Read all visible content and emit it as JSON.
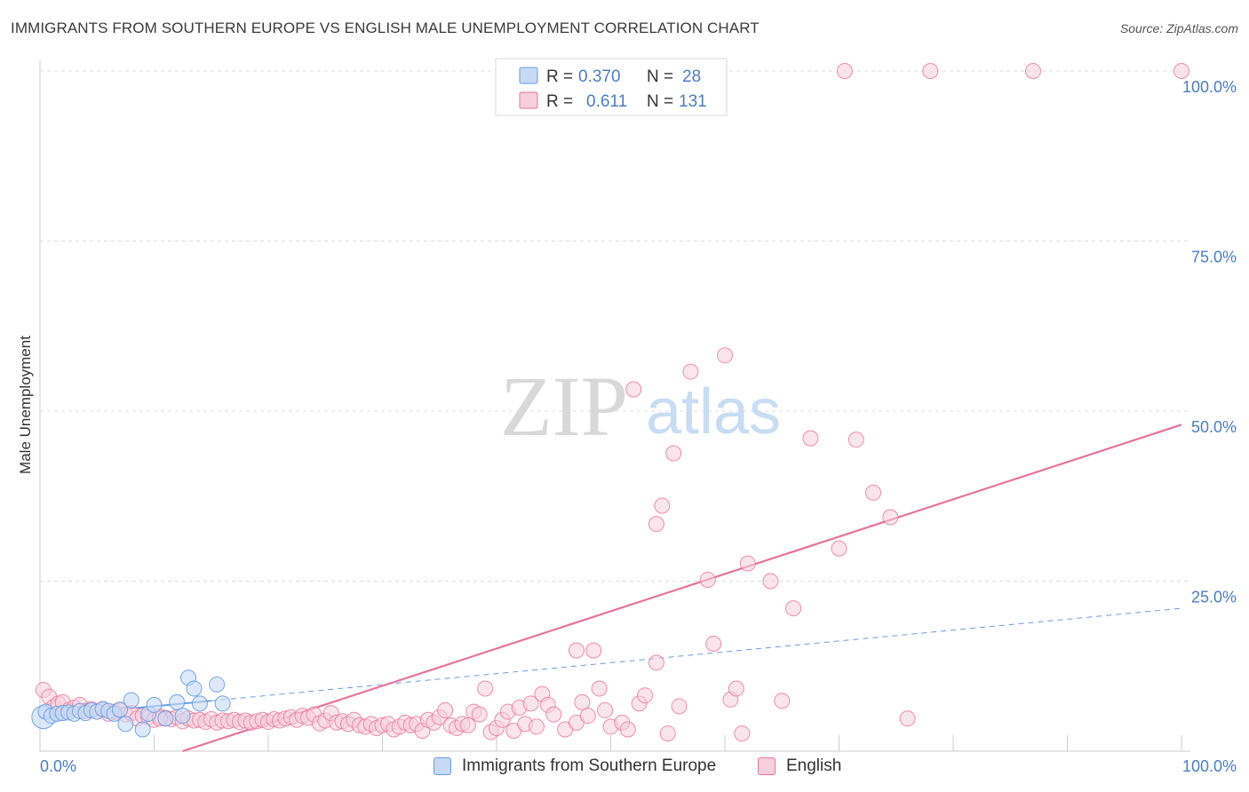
{
  "title": "IMMIGRANTS FROM SOUTHERN EUROPE VS ENGLISH MALE UNEMPLOYMENT CORRELATION CHART",
  "source": "Source: ZipAtlas.com",
  "watermark": {
    "zip": "ZIP",
    "atlas": "atlas"
  },
  "colors": {
    "blue": "#6b9be0",
    "blue_fill": "#c6daf6",
    "pink": "#e8739a",
    "pink_fill": "#f8cfdc",
    "tick_text": "#4a7cc9"
  },
  "legend_top": {
    "rows": [
      {
        "r_label": "R =",
        "r_value": "0.370",
        "n_label": "N =",
        "n_value": "28"
      },
      {
        "r_label": "R =",
        "r_value": "0.611",
        "n_label": "N =",
        "n_value": "131"
      }
    ]
  },
  "legend_bottom": {
    "blue_label": "Immigrants from Southern Europe",
    "pink_label": "English"
  },
  "chart_data": {
    "type": "scatter",
    "title": "IMMIGRANTS FROM SOUTHERN EUROPE VS ENGLISH MALE UNEMPLOYMENT CORRELATION CHART",
    "xlabel": "",
    "ylabel": "Male Unemployment",
    "xlim": [
      0,
      100
    ],
    "ylim": [
      0,
      100
    ],
    "x_tick_labels": [
      "0.0%",
      "100.0%"
    ],
    "y_tick_labels": [
      "100.0%",
      "75.0%",
      "50.0%",
      "25.0%"
    ],
    "y_ticks": [
      100,
      75,
      50,
      25
    ],
    "grid": true,
    "legend_position": "top-center",
    "series": [
      {
        "name": "Immigrants from Southern Europe",
        "color": "#6b9be0",
        "trend": {
          "x": [
            0,
            100
          ],
          "y": [
            5.0,
            21.0
          ],
          "solid_until_x": 15
        },
        "points": [
          [
            0.3,
            5.0
          ],
          [
            0.5,
            5.8
          ],
          [
            1.0,
            5.2
          ],
          [
            1.5,
            5.5
          ],
          [
            2.0,
            5.6
          ],
          [
            2.5,
            5.7
          ],
          [
            3.0,
            5.5
          ],
          [
            3.5,
            5.9
          ],
          [
            4.0,
            5.6
          ],
          [
            4.5,
            6.0
          ],
          [
            5.0,
            5.8
          ],
          [
            5.5,
            6.2
          ],
          [
            6.0,
            5.9
          ],
          [
            6.5,
            5.5
          ],
          [
            7.0,
            6.1
          ],
          [
            7.5,
            4.0
          ],
          [
            8.0,
            7.5
          ],
          [
            9.0,
            3.2
          ],
          [
            9.5,
            5.5
          ],
          [
            10.0,
            6.8
          ],
          [
            11.0,
            4.8
          ],
          [
            12.0,
            7.2
          ],
          [
            12.5,
            5.2
          ],
          [
            13.0,
            10.8
          ],
          [
            13.5,
            9.2
          ],
          [
            14.0,
            7.0
          ],
          [
            15.5,
            9.8
          ],
          [
            16.0,
            7.0
          ]
        ]
      },
      {
        "name": "English",
        "color": "#e8739a",
        "trend": {
          "x": [
            12.5,
            100
          ],
          "y": [
            0,
            48.0
          ]
        },
        "points": [
          [
            0.3,
            9.0
          ],
          [
            0.8,
            8.0
          ],
          [
            1.2,
            6.5
          ],
          [
            1.6,
            7.0
          ],
          [
            2.0,
            7.2
          ],
          [
            2.5,
            6.0
          ],
          [
            3.0,
            6.4
          ],
          [
            3.5,
            6.8
          ],
          [
            4.0,
            5.9
          ],
          [
            4.5,
            6.2
          ],
          [
            5.0,
            5.8
          ],
          [
            5.5,
            6.1
          ],
          [
            6.0,
            5.5
          ],
          [
            6.5,
            5.8
          ],
          [
            7.0,
            6.0
          ],
          [
            7.5,
            5.4
          ],
          [
            8.0,
            5.6
          ],
          [
            8.5,
            4.8
          ],
          [
            9.0,
            5.2
          ],
          [
            9.5,
            5.0
          ],
          [
            10.0,
            4.6
          ],
          [
            10.5,
            5.1
          ],
          [
            11.0,
            4.9
          ],
          [
            11.5,
            4.7
          ],
          [
            12.0,
            5.0
          ],
          [
            12.5,
            4.4
          ],
          [
            13.0,
            4.8
          ],
          [
            13.5,
            4.5
          ],
          [
            14.0,
            4.6
          ],
          [
            14.5,
            4.3
          ],
          [
            15.0,
            4.7
          ],
          [
            15.5,
            4.2
          ],
          [
            16.0,
            4.5
          ],
          [
            16.5,
            4.4
          ],
          [
            17.0,
            4.6
          ],
          [
            17.5,
            4.3
          ],
          [
            18.0,
            4.5
          ],
          [
            18.5,
            4.2
          ],
          [
            19.0,
            4.4
          ],
          [
            19.5,
            4.6
          ],
          [
            20.0,
            4.3
          ],
          [
            20.5,
            4.7
          ],
          [
            21.0,
            4.5
          ],
          [
            21.5,
            4.8
          ],
          [
            22.0,
            5.0
          ],
          [
            22.5,
            4.6
          ],
          [
            23.0,
            5.2
          ],
          [
            23.5,
            4.9
          ],
          [
            24.0,
            5.4
          ],
          [
            24.5,
            4.1
          ],
          [
            25.0,
            4.5
          ],
          [
            25.5,
            5.6
          ],
          [
            26.0,
            4.2
          ],
          [
            26.5,
            4.4
          ],
          [
            27.0,
            4.0
          ],
          [
            27.5,
            4.6
          ],
          [
            28.0,
            3.8
          ],
          [
            28.5,
            3.6
          ],
          [
            29.0,
            4.0
          ],
          [
            29.5,
            3.4
          ],
          [
            30.0,
            3.8
          ],
          [
            30.5,
            4.0
          ],
          [
            31.0,
            3.2
          ],
          [
            31.5,
            3.6
          ],
          [
            32.0,
            4.2
          ],
          [
            32.5,
            3.8
          ],
          [
            33.0,
            4.0
          ],
          [
            33.5,
            3.0
          ],
          [
            34.0,
            4.6
          ],
          [
            34.5,
            4.2
          ],
          [
            35.0,
            5.0
          ],
          [
            35.5,
            6.0
          ],
          [
            36.0,
            3.8
          ],
          [
            36.5,
            3.4
          ],
          [
            37.0,
            4.0
          ],
          [
            37.5,
            3.8
          ],
          [
            38.0,
            5.8
          ],
          [
            38.5,
            5.4
          ],
          [
            39.0,
            9.2
          ],
          [
            39.5,
            2.8
          ],
          [
            40.0,
            3.4
          ],
          [
            40.5,
            4.6
          ],
          [
            41.0,
            5.8
          ],
          [
            41.5,
            3.0
          ],
          [
            42.0,
            6.4
          ],
          [
            42.5,
            4.0
          ],
          [
            43.0,
            7.0
          ],
          [
            43.5,
            3.6
          ],
          [
            44.0,
            8.4
          ],
          [
            44.5,
            6.8
          ],
          [
            45.0,
            5.4
          ],
          [
            46.0,
            3.2
          ],
          [
            47.0,
            4.2
          ],
          [
            47.5,
            7.2
          ],
          [
            48.0,
            5.2
          ],
          [
            48.5,
            14.8
          ],
          [
            49.0,
            9.2
          ],
          [
            49.5,
            6.0
          ],
          [
            50.0,
            3.6
          ],
          [
            51.0,
            4.2
          ],
          [
            51.5,
            3.2
          ],
          [
            52.5,
            7.0
          ],
          [
            53.0,
            8.2
          ],
          [
            54.0,
            33.4
          ],
          [
            54.5,
            36.1
          ],
          [
            55.0,
            2.6
          ],
          [
            55.5,
            43.8
          ],
          [
            56.0,
            6.6
          ],
          [
            57.0,
            55.8
          ],
          [
            58.5,
            25.2
          ],
          [
            59.0,
            15.8
          ],
          [
            60.0,
            58.2
          ],
          [
            60.5,
            7.6
          ],
          [
            61.0,
            9.2
          ],
          [
            62.0,
            27.6
          ],
          [
            64.0,
            25.0
          ],
          [
            65.0,
            7.4
          ],
          [
            66.0,
            21.0
          ],
          [
            67.5,
            46.0
          ],
          [
            70.0,
            29.8
          ],
          [
            71.5,
            45.8
          ],
          [
            73.0,
            38.0
          ],
          [
            74.5,
            34.4
          ],
          [
            76.0,
            4.8
          ],
          [
            78.0,
            100.0
          ],
          [
            52.0,
            53.2
          ],
          [
            70.5,
            100.0
          ],
          [
            87.0,
            100.0
          ],
          [
            100.0,
            100.0
          ],
          [
            47.0,
            14.8
          ],
          [
            61.5,
            2.6
          ],
          [
            54.0,
            13.0
          ],
          [
            10.5,
            4.8
          ]
        ]
      }
    ]
  }
}
